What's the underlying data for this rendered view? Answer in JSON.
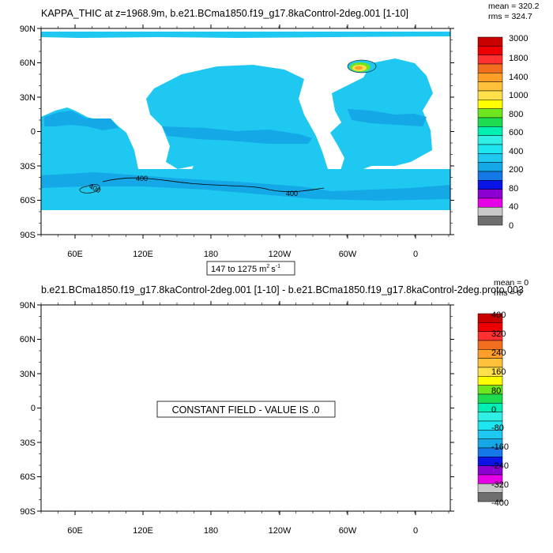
{
  "panels": [
    {
      "title": "KAPPA_THIC at z=1968.9m, b.e21.BCma1850.f19_g17.8kaControl-2deg.001 [1-10]",
      "stats": {
        "mean": "mean = 320.2",
        "rms": "rms = 324.7"
      },
      "range_label": "147 to 1275 m",
      "range_units": "s",
      "range_sup1": "2",
      "range_sup2": "-1",
      "lat_labels": [
        "90N",
        "60N",
        "30N",
        "0",
        "30S",
        "60S",
        "90S"
      ],
      "lon_labels": [
        "60E",
        "120E",
        "180",
        "120W",
        "60W",
        "0"
      ],
      "colorbar_labels": [
        "3000",
        "1800",
        "1400",
        "1000",
        "800",
        "600",
        "400",
        "200",
        "80",
        "40",
        "0"
      ],
      "contour_labels": [
        "400",
        "400",
        "400"
      ]
    },
    {
      "title": "b.e21.BCma1850.f19_g17.8kaControl-2deg.001 [1-10] - b.e21.BCma1850.f19_g17.8kaControl-2deg.proto.003",
      "stats": {
        "mean": "mean = 0",
        "rms": "rms = 0"
      },
      "message": "CONSTANT FIELD - VALUE IS .0",
      "lat_labels": [
        "90N",
        "60N",
        "30N",
        "0",
        "30S",
        "60S",
        "90S"
      ],
      "lon_labels": [
        "60E",
        "120E",
        "180",
        "120W",
        "60W",
        "0"
      ],
      "colorbar_labels": [
        "400",
        "320",
        "240",
        "160",
        "80",
        "0",
        "-80",
        "-160",
        "-240",
        "-320",
        "-400"
      ]
    }
  ],
  "colors": {
    "ocean": "#1ec8f0",
    "ocean_band": "#14a8e6",
    "land": "#ffffff",
    "colorbar": [
      "#c80000",
      "#ee0000",
      "#ff3030",
      "#f06e1e",
      "#ff9e28",
      "#ffc03a",
      "#ffe04a",
      "#ffff00",
      "#6ee61e",
      "#1edc50",
      "#00f0b4",
      "#30f0e6",
      "#1ee6f0",
      "#1ec8f0",
      "#14a8e6",
      "#1478e6",
      "#0a14e6",
      "#8c00d2",
      "#e600e6",
      "#c8c8c8",
      "#6e6e6e"
    ]
  },
  "chart_data": [
    {
      "type": "heatmap",
      "title": "KAPPA_THIC at z=1968.9m, b.e21.BCma1850.f19_g17.8kaControl-2deg.001 [1-10]",
      "variable": "KAPPA_THIC",
      "depth": "z=1968.9m",
      "mean": 320.2,
      "rms": 324.7,
      "data_min": 147,
      "data_max": 1275,
      "units": "m2 s-1",
      "projection": "cylindrical equidistant, centered 180",
      "lon_ticks": [
        "60E",
        "120E",
        "180",
        "120W",
        "60W",
        "0"
      ],
      "lat_ticks": [
        "90N",
        "60N",
        "30N",
        "0",
        "30S",
        "60S",
        "90S"
      ],
      "color_levels": [
        0,
        40,
        80,
        200,
        400,
        600,
        800,
        1000,
        1400,
        1800,
        3000
      ],
      "contours": [
        400
      ],
      "dominant_range": [
        400,
        600
      ]
    },
    {
      "type": "heatmap",
      "title": "b.e21.BCma1850.f19_g17.8kaControl-2deg.001 [1-10] - b.e21.BCma1850.f19_g17.8kaControl-2deg.proto.003",
      "mean": 0,
      "rms": 0,
      "constant_value": 0,
      "lon_ticks": [
        "60E",
        "120E",
        "180",
        "120W",
        "60W",
        "0"
      ],
      "lat_ticks": [
        "90N",
        "60N",
        "30N",
        "0",
        "30S",
        "60S",
        "90S"
      ],
      "color_levels": [
        -400,
        -320,
        -240,
        -160,
        -80,
        0,
        80,
        160,
        240,
        320,
        400
      ]
    }
  ]
}
